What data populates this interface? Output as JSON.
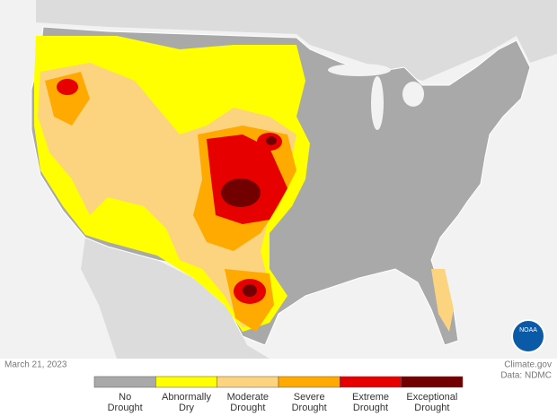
{
  "map": {
    "date": "March 21, 2023",
    "source": "Climate.gov",
    "data_credit": "Data: NDMC",
    "logo": "NOAA"
  },
  "legend": [
    {
      "label": [
        "No",
        "Drought"
      ],
      "color": "#a9a9a9"
    },
    {
      "label": [
        "Abnormally",
        "Dry"
      ],
      "color": "#ffff00"
    },
    {
      "label": [
        "Moderate",
        "Drought"
      ],
      "color": "#fcd37f"
    },
    {
      "label": [
        "Severe",
        "Drought"
      ],
      "color": "#ffaa00"
    },
    {
      "label": [
        "Extreme",
        "Drought"
      ],
      "color": "#e60000"
    },
    {
      "label": [
        "Exceptional",
        "Drought"
      ],
      "color": "#730000"
    }
  ]
}
